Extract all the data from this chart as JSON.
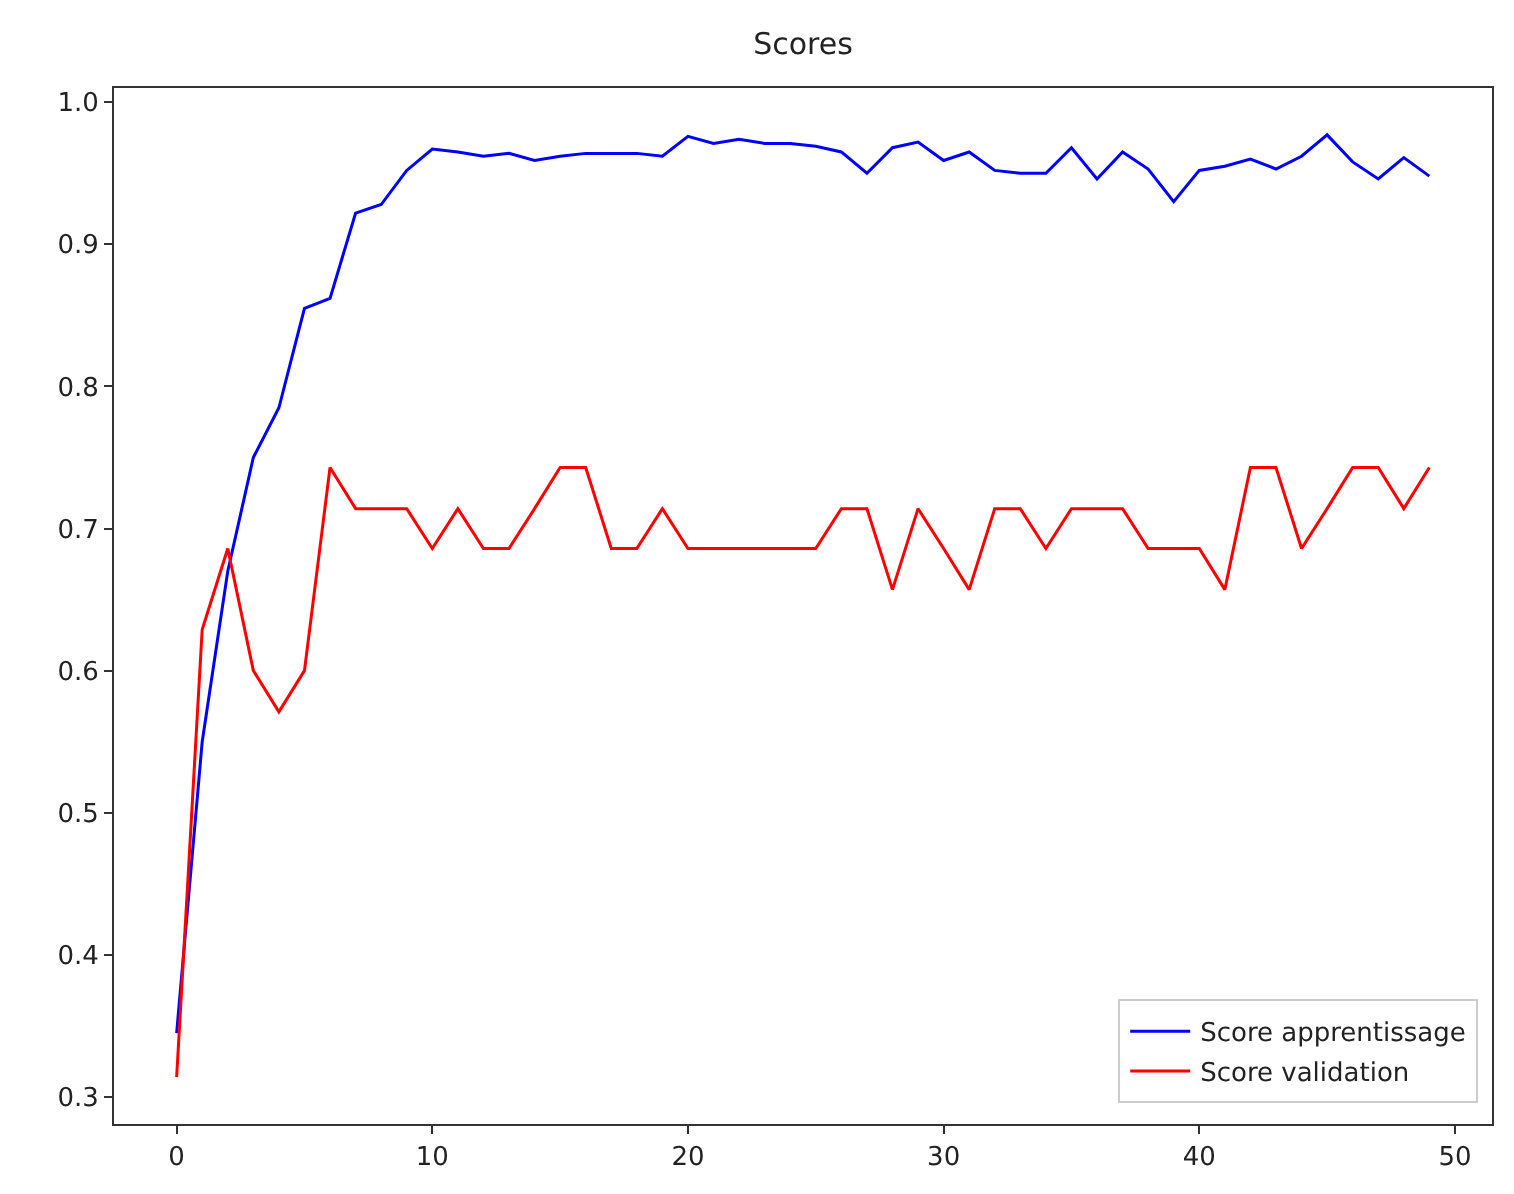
{
  "chart_data": {
    "type": "line",
    "title": "Scores",
    "x": [
      0,
      1,
      2,
      3,
      4,
      5,
      6,
      7,
      8,
      9,
      10,
      11,
      12,
      13,
      14,
      15,
      16,
      17,
      18,
      19,
      20,
      21,
      22,
      23,
      24,
      25,
      26,
      27,
      28,
      29,
      30,
      31,
      32,
      33,
      34,
      35,
      36,
      37,
      38,
      39,
      40,
      41,
      42,
      43,
      44,
      45,
      46,
      47,
      48,
      49
    ],
    "series": [
      {
        "name": "Score apprentissage",
        "color": "#0000ff",
        "values": [
          0.345,
          0.55,
          0.67,
          0.75,
          0.785,
          0.855,
          0.862,
          0.922,
          0.928,
          0.952,
          0.967,
          0.965,
          0.962,
          0.964,
          0.959,
          0.962,
          0.964,
          0.964,
          0.964,
          0.962,
          0.976,
          0.971,
          0.974,
          0.971,
          0.971,
          0.969,
          0.965,
          0.95,
          0.968,
          0.972,
          0.959,
          0.965,
          0.952,
          0.95,
          0.95,
          0.968,
          0.946,
          0.965,
          0.953,
          0.93,
          0.952,
          0.955,
          0.96,
          0.953,
          0.962,
          0.977,
          0.958,
          0.946,
          0.961,
          0.948
        ]
      },
      {
        "name": "Score validation",
        "color": "#ff0000",
        "values": [
          0.314,
          0.629,
          0.686,
          0.6,
          0.571,
          0.6,
          0.743,
          0.714,
          0.714,
          0.714,
          0.686,
          0.714,
          0.686,
          0.686,
          0.714,
          0.743,
          0.743,
          0.686,
          0.686,
          0.714,
          0.686,
          0.686,
          0.686,
          0.686,
          0.686,
          0.686,
          0.714,
          0.714,
          0.657,
          0.714,
          0.686,
          0.657,
          0.714,
          0.714,
          0.686,
          0.714,
          0.714,
          0.714,
          0.686,
          0.686,
          0.686,
          0.657,
          0.743,
          0.743,
          0.686,
          0.714,
          0.743,
          0.743,
          0.714,
          0.743
        ]
      }
    ],
    "xlim": [
      -2.45,
      51.45
    ],
    "xticks": [
      0,
      10,
      20,
      30,
      40,
      50
    ],
    "ylim": [
      0.281,
      1.01
    ],
    "yticks": [
      {
        "value": 0.3,
        "label": "0.3"
      },
      {
        "value": 0.4,
        "label": "0.4"
      },
      {
        "value": 0.5,
        "label": "0.5"
      },
      {
        "value": 0.6,
        "label": "0.6"
      },
      {
        "value": 0.7,
        "label": "0.7"
      },
      {
        "value": 0.8,
        "label": "0.8"
      },
      {
        "value": 0.9,
        "label": "0.9"
      },
      {
        "value": 1.0,
        "label": "1.0"
      }
    ],
    "legend": "bottom right",
    "marker": "none",
    "line_style": "solid"
  }
}
